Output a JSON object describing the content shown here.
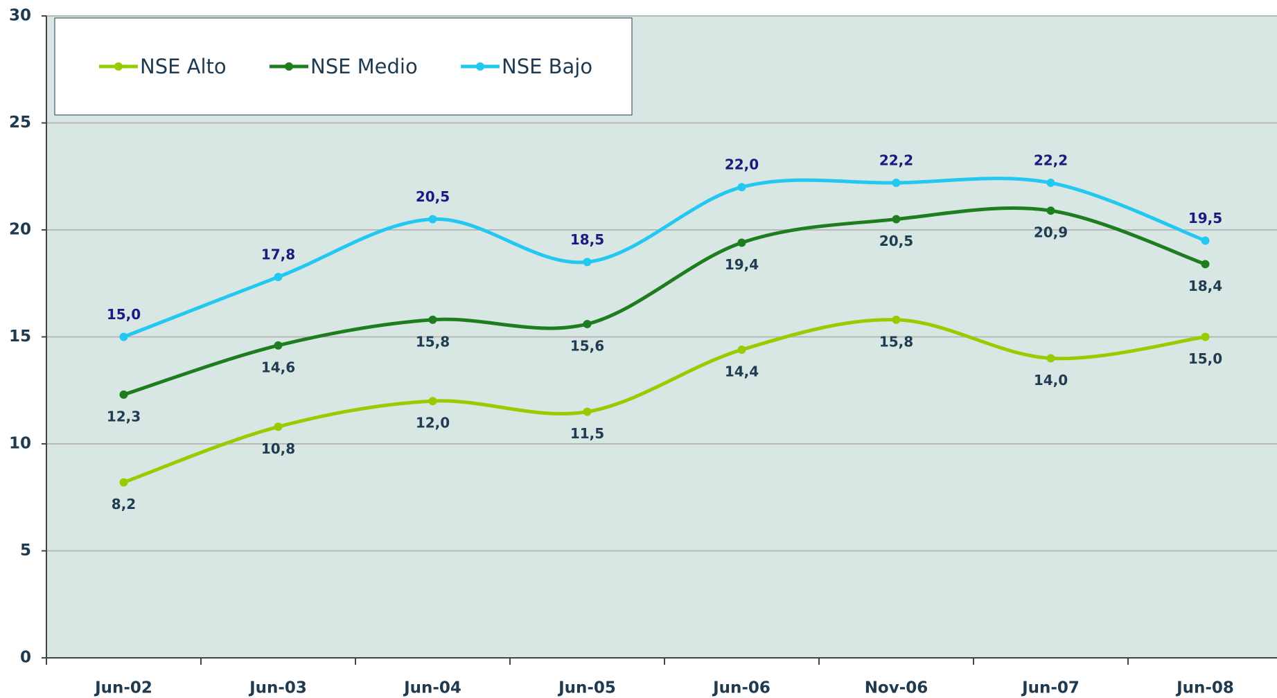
{
  "chart_data": {
    "type": "line",
    "categories": [
      "Jun-02",
      "Jun-03",
      "Jun-04",
      "Jun-05",
      "Jun-06",
      "Nov-06",
      "Jun-07",
      "Jun-08"
    ],
    "series": [
      {
        "name": "NSE Alto",
        "color": "#99cc00",
        "values": [
          8.2,
          10.8,
          12.0,
          11.5,
          14.4,
          15.8,
          14.0,
          15.0
        ],
        "value_labels": [
          "8,2",
          "10,8",
          "12,0",
          "11,5",
          "14,4",
          "15,8",
          "14,0",
          "15,0"
        ]
      },
      {
        "name": "NSE Medio",
        "color": "#1e7d1e",
        "values": [
          12.3,
          14.6,
          15.8,
          15.6,
          19.4,
          20.5,
          20.9,
          18.4
        ],
        "value_labels": [
          "12,3",
          "14,6",
          "15,8",
          "15,6",
          "19,4",
          "20,5",
          "20,9",
          "18,4"
        ]
      },
      {
        "name": "NSE Bajo",
        "color": "#22c8f0",
        "values": [
          15.0,
          17.8,
          20.5,
          18.5,
          22.0,
          22.2,
          22.2,
          19.5
        ],
        "value_labels": [
          "15,0",
          "17,8",
          "20,5",
          "18,5",
          "22,0",
          "22,2",
          "22,2",
          "19,5"
        ]
      }
    ],
    "ylim": [
      0,
      30
    ],
    "yticks": [
      0,
      5,
      10,
      15,
      20,
      25,
      30
    ],
    "grid": true,
    "legend": "top-left"
  }
}
